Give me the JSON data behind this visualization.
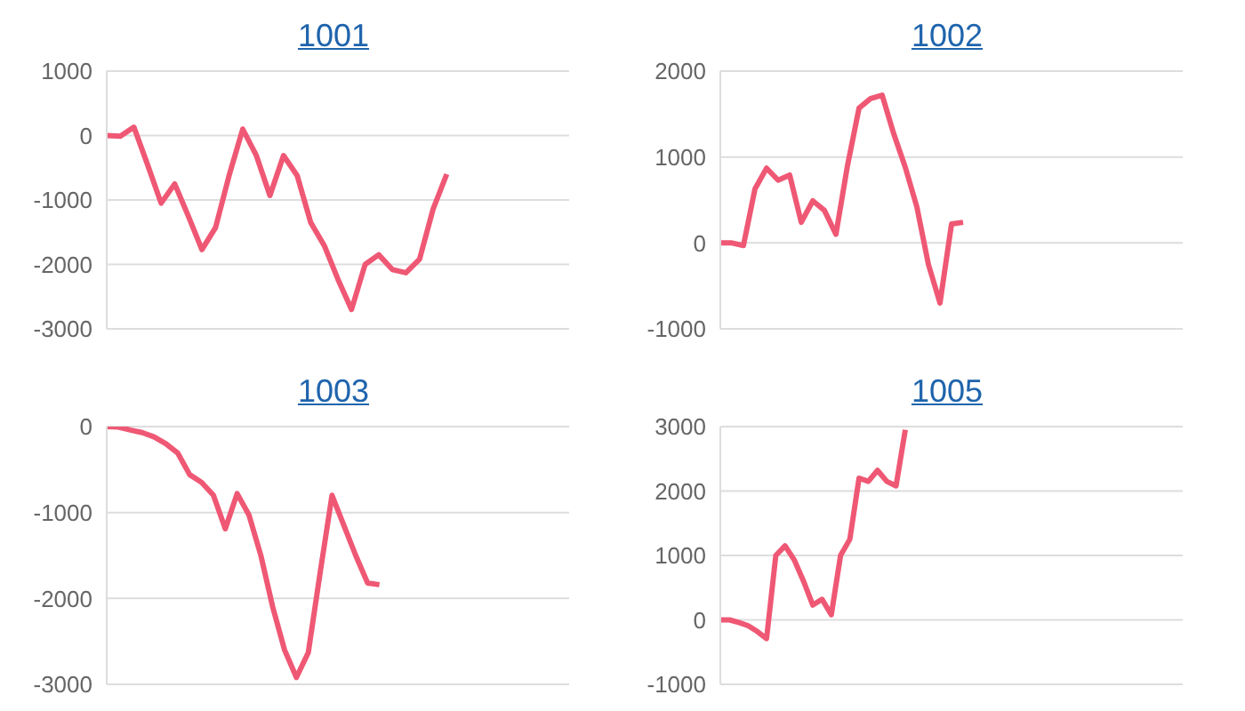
{
  "chart_data": [
    {
      "type": "line",
      "title": "1001",
      "categories": [
        null,
        null,
        null,
        null,
        null,
        null,
        null,
        null,
        null,
        null,
        null,
        null,
        null,
        null,
        null,
        null,
        null,
        null,
        null,
        null,
        null,
        null,
        null,
        null,
        null,
        null,
        null,
        null,
        null,
        null,
        null,
        null,
        null,
        null,
        null
      ],
      "color": "#ef5874",
      "values": [
        0,
        -10,
        130,
        -450,
        -1050,
        -750,
        -1250,
        -1770,
        -1430,
        -620,
        100,
        -310,
        -930,
        -310,
        -620,
        -1350,
        -1710,
        -2230,
        -2700,
        -2000,
        -1850,
        -2080,
        -2130,
        -1920,
        -1140,
        -600,
        null,
        null,
        null,
        null,
        null,
        null,
        null,
        null,
        null
      ],
      "ylim": [
        -3000,
        1000
      ],
      "yticks": [
        -3000,
        -2000,
        -1000,
        0,
        1000
      ],
      "grid": "y",
      "tick_labels": "y",
      "marker": "none",
      "line_style": "solid"
    },
    {
      "type": "line",
      "title": "1002",
      "categories": [
        null,
        null,
        null,
        null,
        null,
        null,
        null,
        null,
        null,
        null,
        null,
        null,
        null,
        null,
        null,
        null,
        null,
        null,
        null,
        null,
        null,
        null,
        null,
        null,
        null,
        null,
        null,
        null,
        null,
        null,
        null,
        null,
        null,
        null,
        null,
        null,
        null,
        null,
        null,
        null,
        null
      ],
      "color": "#ef5874",
      "values": [
        0,
        0,
        -30,
        630,
        870,
        730,
        790,
        240,
        490,
        380,
        100,
        900,
        1570,
        1680,
        1720,
        1270,
        880,
        420,
        -250,
        -700,
        220,
        240,
        null,
        null,
        null,
        null,
        null,
        null,
        null,
        null,
        null,
        null,
        null,
        null,
        null,
        null,
        null,
        null,
        null,
        null,
        null
      ],
      "ylim": [
        -1000,
        2000
      ],
      "yticks": [
        -1000,
        0,
        1000,
        2000
      ],
      "grid": "y",
      "tick_labels": "y",
      "marker": "none",
      "line_style": "solid"
    },
    {
      "type": "line",
      "title": "1003",
      "categories": [
        null,
        null,
        null,
        null,
        null,
        null,
        null,
        null,
        null,
        null,
        null,
        null,
        null,
        null,
        null,
        null,
        null,
        null,
        null,
        null,
        null,
        null,
        null,
        null,
        null,
        null,
        null,
        null,
        null,
        null,
        null,
        null,
        null,
        null,
        null,
        null,
        null,
        null,
        null,
        null
      ],
      "color": "#ef5874",
      "values": [
        0,
        -5,
        -40,
        -70,
        -120,
        -200,
        -310,
        -560,
        -650,
        -800,
        -1190,
        -780,
        -1030,
        -1500,
        -2100,
        -2600,
        -2920,
        -2630,
        -1700,
        -800,
        -1150,
        -1500,
        -1820,
        -1840,
        null,
        null,
        null,
        null,
        null,
        null,
        null,
        null,
        null,
        null,
        null,
        null,
        null,
        null,
        null,
        null
      ],
      "ylim": [
        -3000,
        0
      ],
      "yticks": [
        -3000,
        -2000,
        -1000,
        0
      ],
      "grid": "y",
      "tick_labels": "y",
      "marker": "none",
      "line_style": "solid"
    },
    {
      "type": "line",
      "title": "1005",
      "categories": [
        null,
        null,
        null,
        null,
        null,
        null,
        null,
        null,
        null,
        null,
        null,
        null,
        null,
        null,
        null,
        null,
        null,
        null,
        null,
        null,
        null,
        null,
        null,
        null,
        null,
        null,
        null,
        null,
        null,
        null,
        null,
        null,
        null,
        null,
        null,
        null,
        null,
        null,
        null,
        null,
        null,
        null,
        null,
        null,
        null,
        null,
        null,
        null,
        null,
        null,
        null
      ],
      "color": "#ef5874",
      "values": [
        0,
        0,
        -40,
        -90,
        -180,
        -290,
        1000,
        1150,
        930,
        600,
        230,
        320,
        80,
        1000,
        1250,
        2200,
        2150,
        2320,
        2150,
        2080,
        2950,
        null,
        null,
        null,
        null,
        null,
        null,
        null,
        null,
        null,
        null,
        null,
        null,
        null,
        null,
        null,
        null,
        null,
        null,
        null,
        null,
        null,
        null,
        null,
        null,
        null,
        null,
        null,
        null,
        null,
        null
      ],
      "ylim": [
        -1000,
        3000
      ],
      "yticks": [
        -1000,
        0,
        1000,
        2000,
        3000
      ],
      "grid": "y",
      "tick_labels": "y",
      "marker": "none",
      "line_style": "solid"
    }
  ]
}
